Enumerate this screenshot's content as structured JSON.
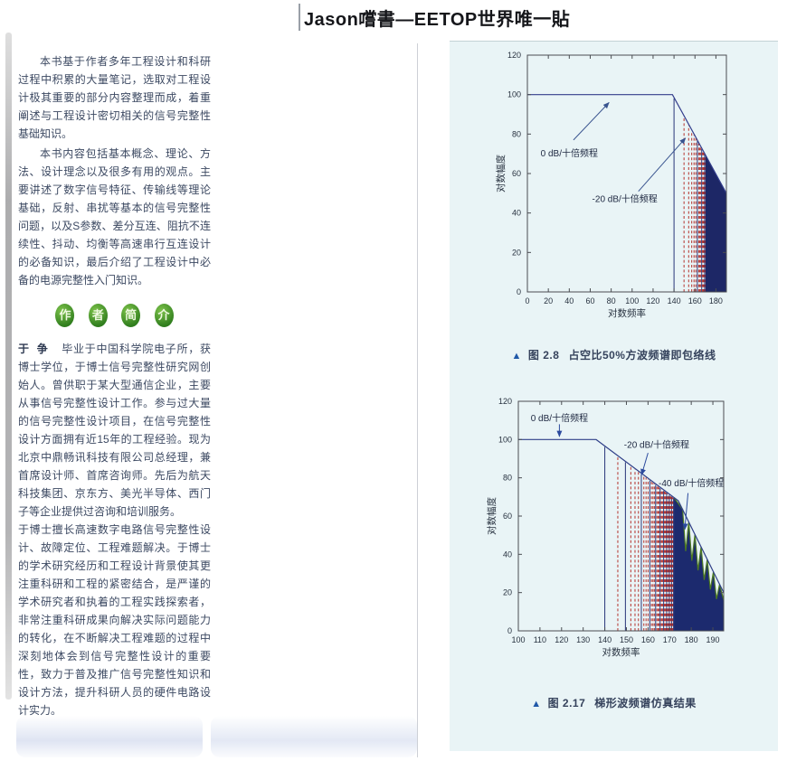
{
  "page": {
    "header": "Jason嚐書—EETOP世界唯一貼"
  },
  "icons": {
    "caption_triangle": "▲"
  },
  "left_column": {
    "para1": "本书基于作者多年工程设计和科研过程中积累的大量笔记，选取对工程设计极其重要的部分内容整理而成，着重阐述与工程设计密切相关的信号完整性基础知识。",
    "para2": "本书内容包括基本概念、理论、方法、设计理念以及很多有用的观点。主要讲述了数字信号特征、传输线等理论基础，反射、串扰等基本的信号完整性问题，以及S参数、差分互连、阻抗不连续性、抖动、均衡等高速串行互连设计的必备知识，最后介绍了工程设计中必备的电源完整性入门知识。",
    "author_badge": [
      "作",
      "者",
      "简",
      "介"
    ],
    "bio1_name": "于 争",
    "bio1_rest": "　毕业于中国科学院电子所，获博士学位，于博士信号完整性研究网创始人。曾供职于某大型通信企业，主要从事信号完整性设计工作。参与过大量的信号完整性设计项目，在信号完整性设计方面拥有近15年的工程经验。现为北京中鼎畅讯科技有限公司总经理，兼首席设计师、首席咨询师。先后为航天科技集团、京东方、美光半导体、西门子等企业提供过咨询和培训服务。",
    "bio2": "于博士擅长高速数字电路信号完整性设计、故障定位、工程难题解决。于博士的学术研究经历和工程设计背景使其更注重科研和工程的紧密结合，是严谨的学术研究者和执着的工程实践探索者，非常注重科研成果向解决实际问题能力的转化，在不断解决工程难题的过程中深刻地体会到信号完整性设计的重要性，致力于普及推广信号完整性知识和设计方法，提升科研人员的硬件电路设计实力。"
  },
  "chart_data": [
    {
      "type": "line",
      "figure_label": "图 2.8",
      "figure_title": "占空比50%方波频谱即包络线",
      "xlabel": "对数频率",
      "ylabel": "对数幅度",
      "xlim": [
        0,
        190
      ],
      "ylim": [
        0,
        120
      ],
      "xticks": [
        0,
        20,
        40,
        60,
        80,
        100,
        120,
        140,
        160,
        180
      ],
      "yticks": [
        0,
        20,
        40,
        60,
        80,
        100,
        120
      ],
      "grid": false,
      "envelope_points": [
        [
          0,
          100
        ],
        [
          138.5,
          100
        ],
        [
          190,
          50
        ]
      ],
      "harmonics": {
        "first_harmonic_x": 140,
        "units_per_decade": 20,
        "odd_only": true,
        "solid_n": [
          1
        ],
        "solid_fill_from_x": 170
      },
      "annotations": [
        {
          "text": "0 dB/十倍频程",
          "text_x": 40,
          "text_y": 70,
          "arrow_from": [
            44,
            77
          ],
          "arrow_to": [
            78,
            96
          ]
        },
        {
          "text": "-20 dB/十倍频程",
          "text_x": 93,
          "text_y": 47,
          "arrow_from": [
            106,
            51
          ],
          "arrow_to": [
            151,
            78
          ]
        }
      ],
      "colors": {
        "axis": "#4a4d52",
        "tick_text": "#27313f",
        "envelope": "#333d8c",
        "harmonic_dashed": "#b5322d",
        "harmonic_solid": "#283579",
        "fill": "#1d2766",
        "arrow": "#39548f",
        "annotation_text": "#1d2740"
      }
    },
    {
      "type": "line",
      "figure_label": "图 2.17",
      "figure_title": "梯形波频谱仿真结果",
      "xlabel": "对数频率",
      "ylabel": "对数幅度",
      "xlim": [
        100,
        195
      ],
      "ylim": [
        0,
        120
      ],
      "xticks": [
        100,
        110,
        120,
        130,
        140,
        150,
        160,
        170,
        180,
        190
      ],
      "yticks": [
        0,
        20,
        40,
        60,
        80,
        100,
        120
      ],
      "grid": false,
      "envelope_points": [
        [
          100,
          100
        ],
        [
          136,
          100
        ],
        [
          174,
          68
        ],
        [
          195,
          20
        ]
      ],
      "harmonics": {
        "first_harmonic_x": 140,
        "units_per_decade": 20,
        "odd_only": false,
        "solid_n": [
          1,
          3
        ],
        "solid_fill_from_x": 172,
        "lobes": {
          "start": 176,
          "count": 7,
          "spacing": 2.85,
          "depth_start": 20,
          "depth_end": 11
        }
      },
      "annotations": [
        {
          "text": "0 dB/十倍频程",
          "text_x": 119,
          "text_y": 111,
          "arrow_from": [
            119,
            108
          ],
          "arrow_to": [
            119,
            101.5
          ]
        },
        {
          "text": "-20 dB/十倍频程",
          "text_x": 164,
          "text_y": 97,
          "arrow_from": [
            160,
            93
          ],
          "arrow_to": [
            157,
            81.5
          ]
        },
        {
          "text": "-40 dB/十倍频程",
          "text_x": 180,
          "text_y": 77,
          "arrow_from": [
            178.5,
            72
          ],
          "arrow_to": [
            177,
            53
          ]
        }
      ],
      "colors": {
        "axis": "#4a4d52",
        "tick_text": "#27313f",
        "envelope": "#2f3f88",
        "harmonic_dashed": "#b5322d",
        "harmonic_solid": "#283579",
        "fill": "#1c2a6e",
        "lobe_edge": "#4d7a22",
        "arrow": "#2b4a9e",
        "annotation_text": "#1d2740"
      }
    }
  ]
}
